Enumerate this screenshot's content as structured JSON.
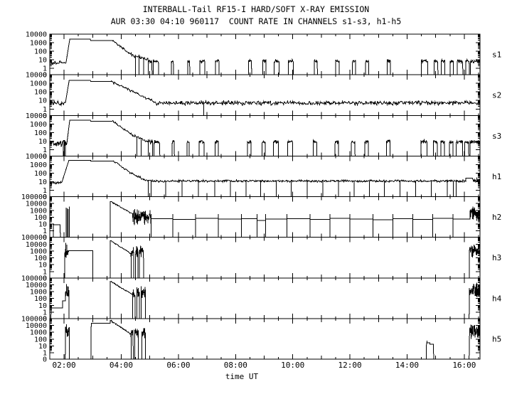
{
  "title": "INTERBALL-Tail RF15-I HARD/SOFT X-RAY EMISSION",
  "subtitle": "AUR 03:30 04:10 960117  COUNT RATE IN CHANNELS s1-s3, h1-h5",
  "chart_data": {
    "type": "line",
    "title": "INTERBALL-Tail RF15-I HARD/SOFT X-RAY EMISSION",
    "subtitle": "AUR 03:30 04:10 960117  COUNT RATE IN CHANNELS s1-s3, h1-h5",
    "xlabel": "time UT",
    "y_scale": "log",
    "grid": false,
    "x_range_hours": [
      1.5,
      16.55
    ],
    "x_minor_tick_hours": 0.5,
    "x_ticks": [
      {
        "t": 2,
        "label": "02:00"
      },
      {
        "t": 4,
        "label": "04:00"
      },
      {
        "t": 6,
        "label": "06:00"
      },
      {
        "t": 8,
        "label": "08:00"
      },
      {
        "t": 10,
        "label": "10:00"
      },
      {
        "t": 12,
        "label": "12:00"
      },
      {
        "t": 14,
        "label": "14:00"
      },
      {
        "t": 16,
        "label": "16:00"
      }
    ],
    "zero_label": "0",
    "panels": [
      {
        "label": "s1",
        "ymax": 10000,
        "ytick_labels": [
          "10000",
          "1000",
          "100",
          "10",
          "1",
          "0"
        ],
        "segments": [
          {
            "type": "noisy",
            "t0": 1.5,
            "t1": 2.07,
            "level": 4.5,
            "jitter": 0.32
          },
          {
            "type": "rise",
            "t0": 2.07,
            "t1": 2.2,
            "from": 5,
            "to": 2500
          },
          {
            "type": "flat",
            "t0": 2.2,
            "t1": 2.93,
            "level": 2500
          },
          {
            "type": "flat",
            "t0": 2.93,
            "t1": 3.7,
            "level": 1800
          },
          {
            "type": "decay",
            "t0": 3.7,
            "t1": 4.35,
            "from": 1800,
            "to": 40,
            "jitter": 0.15
          },
          {
            "type": "decay",
            "t0": 4.35,
            "t1": 4.95,
            "from": 40,
            "to": 9,
            "jitter": 0.25,
            "gaps": [
              4.5,
              4.62,
              4.78
            ]
          },
          {
            "type": "bursts",
            "t0": 4.95,
            "t1": 16.55,
            "level": 7,
            "jitter": 0.22,
            "dt": 0.012,
            "intervals": [
              [
                4.95,
                5.08
              ],
              [
                5.12,
                5.3
              ],
              [
                5.75,
                5.83
              ],
              [
                6.33,
                6.4
              ],
              [
                6.75,
                6.92
              ],
              [
                7.3,
                7.42
              ],
              [
                8.45,
                8.56
              ],
              [
                8.95,
                9.06
              ],
              [
                9.35,
                9.52
              ],
              [
                9.85,
                10.02
              ],
              [
                10.75,
                10.86
              ],
              [
                11.5,
                11.62
              ],
              [
                12.08,
                12.2
              ],
              [
                12.55,
                12.66
              ],
              [
                13.3,
                13.42
              ],
              [
                14.5,
                14.72
              ],
              [
                14.95,
                15.08
              ],
              [
                15.2,
                15.32
              ],
              [
                15.5,
                15.62
              ],
              [
                15.75,
                15.95
              ],
              [
                16.05,
                16.18
              ],
              [
                16.22,
                16.55
              ]
            ]
          }
        ]
      },
      {
        "label": "s2",
        "ymax": 10000,
        "ytick_labels": [
          "10000",
          "1000",
          "100",
          "10",
          "1",
          "0"
        ],
        "segments": [
          {
            "type": "noisy",
            "t0": 1.5,
            "t1": 2.05,
            "level": 5,
            "jitter": 0.3
          },
          {
            "type": "rise",
            "t0": 2.05,
            "t1": 2.18,
            "from": 6,
            "to": 2200
          },
          {
            "type": "flat",
            "t0": 2.18,
            "t1": 2.93,
            "level": 2200
          },
          {
            "type": "flat",
            "t0": 2.93,
            "t1": 3.66,
            "level": 1600
          },
          {
            "type": "decay",
            "t0": 3.66,
            "t1": 5.2,
            "from": 1600,
            "to": 6,
            "jitter": 0.2
          },
          {
            "type": "noisy",
            "t0": 5.2,
            "t1": 16.55,
            "level": 5,
            "jitter": 0.3,
            "gaps": [
              6.88
            ]
          }
        ]
      },
      {
        "label": "s3",
        "ymax": 10000,
        "ytick_labels": [
          "10000",
          "1000",
          "100",
          "10",
          "1",
          "0"
        ],
        "segments": [
          {
            "type": "noisy",
            "t0": 1.5,
            "t1": 2.1,
            "level": 5.5,
            "jitter": 0.45,
            "gaps": [
              1.97,
              2.01,
              2.05
            ]
          },
          {
            "type": "rise",
            "t0": 2.1,
            "t1": 2.2,
            "from": 6,
            "to": 2800
          },
          {
            "type": "flat",
            "t0": 2.2,
            "t1": 2.93,
            "level": 2800
          },
          {
            "type": "flat",
            "t0": 2.93,
            "t1": 3.7,
            "level": 2100
          },
          {
            "type": "decay",
            "t0": 3.7,
            "t1": 4.4,
            "from": 2100,
            "to": 50,
            "jitter": 0.15
          },
          {
            "type": "decay",
            "t0": 4.4,
            "t1": 4.95,
            "from": 50,
            "to": 9,
            "jitter": 0.25,
            "gaps": [
              4.55,
              4.7
            ]
          },
          {
            "type": "bursts",
            "t0": 4.95,
            "t1": 16.55,
            "level": 8,
            "jitter": 0.25,
            "dt": 0.012,
            "intervals": [
              [
                4.95,
                5.1
              ],
              [
                5.15,
                5.35
              ],
              [
                5.78,
                5.86
              ],
              [
                6.3,
                6.38
              ],
              [
                6.72,
                6.9
              ],
              [
                7.28,
                7.4
              ],
              [
                8.42,
                8.54
              ],
              [
                8.92,
                9.04
              ],
              [
                9.32,
                9.5
              ],
              [
                9.82,
                10.0
              ],
              [
                10.72,
                10.84
              ],
              [
                11.48,
                11.6
              ],
              [
                12.05,
                12.18
              ],
              [
                12.52,
                12.64
              ],
              [
                13.28,
                13.4
              ],
              [
                14.48,
                14.7
              ],
              [
                14.92,
                15.06
              ],
              [
                15.18,
                15.3
              ],
              [
                15.48,
                15.6
              ],
              [
                15.72,
                15.94
              ],
              [
                16.02,
                16.16
              ],
              [
                16.2,
                16.55
              ]
            ]
          }
        ]
      },
      {
        "label": "h1",
        "ymax": 10000,
        "ytick_labels": [
          "10000",
          "1000",
          "100",
          "10",
          "1",
          "0"
        ],
        "segments": [
          {
            "type": "noisy",
            "t0": 1.5,
            "t1": 1.92,
            "level": 7,
            "jitter": 0.25
          },
          {
            "type": "rise",
            "t0": 1.92,
            "t1": 2.17,
            "from": 8,
            "to": 3200
          },
          {
            "type": "flat",
            "t0": 2.17,
            "t1": 2.93,
            "level": 3200
          },
          {
            "type": "flat",
            "t0": 2.93,
            "t1": 3.73,
            "level": 2600
          },
          {
            "type": "decay",
            "t0": 3.73,
            "t1": 4.3,
            "from": 2600,
            "to": 120,
            "jitter": 0.12
          },
          {
            "type": "decay",
            "t0": 4.3,
            "t1": 4.85,
            "from": 120,
            "to": 14,
            "jitter": 0.2
          },
          {
            "type": "noisy",
            "t0": 4.85,
            "t1": 16.05,
            "level": 12,
            "jitter": 0.16,
            "gaps": [
              4.95,
              5.05,
              5.55,
              6.13,
              6.7,
              7.27,
              7.82,
              8.36,
              8.88,
              9.42,
              9.95,
              10.5,
              11.05,
              11.6,
              12.15,
              12.68,
              13.2,
              13.75,
              14.3,
              14.85,
              15.4,
              15.62,
              15.72
            ]
          },
          {
            "type": "flat",
            "t0": 16.05,
            "t1": 16.3,
            "level": 25
          },
          {
            "type": "noisy",
            "t0": 16.3,
            "t1": 16.55,
            "level": 14,
            "jitter": 0.35,
            "dt": 0.01
          }
        ]
      },
      {
        "label": "h2",
        "ymax": 100000,
        "ytick_labels": [
          "100000",
          "10000",
          "1000",
          "100",
          "10",
          "1",
          "0"
        ],
        "segments": [
          {
            "type": "zero",
            "t0": 1.5,
            "t1": 1.62
          },
          {
            "type": "flat",
            "t0": 1.62,
            "t1": 1.87,
            "level": 8
          },
          {
            "type": "zero",
            "t0": 1.87,
            "t1": 2.05
          },
          {
            "type": "spikes",
            "t0": 2.05,
            "t1": 2.2,
            "n": 4,
            "peak": 3500
          },
          {
            "type": "zero",
            "t0": 2.2,
            "t1": 3.62
          },
          {
            "type": "decay",
            "t0": 3.62,
            "t1": 4.4,
            "from": 20000,
            "to": 250,
            "jitter": 0.1,
            "steppy": true
          },
          {
            "type": "noisy",
            "t0": 4.4,
            "t1": 5.05,
            "level": 120,
            "jitter": 1.3,
            "dt": 0.008
          },
          {
            "type": "steps",
            "t1": 16.2,
            "spikes_to": 300,
            "points": [
              [
                5.05,
                60
              ],
              [
                5.8,
                48
              ],
              [
                6.6,
                65
              ],
              [
                7.4,
                52
              ],
              [
                8.2,
                62
              ],
              [
                8.75,
                32
              ],
              [
                9.05,
                55
              ],
              [
                9.8,
                62
              ],
              [
                10.6,
                48
              ],
              [
                11.3,
                65
              ],
              [
                12.0,
                55
              ],
              [
                12.8,
                44
              ],
              [
                13.5,
                60
              ],
              [
                14.2,
                50
              ],
              [
                14.9,
                66
              ],
              [
                15.6,
                52
              ]
            ]
          },
          {
            "type": "noisy",
            "t0": 16.2,
            "t1": 16.55,
            "level": 250,
            "jitter": 1.3,
            "dt": 0.008
          }
        ]
      },
      {
        "label": "h3",
        "ymax": 100000,
        "ytick_labels": [
          "100000",
          "10000",
          "1000",
          "100",
          "10",
          "1",
          "0"
        ],
        "segments": [
          {
            "type": "zero",
            "t0": 1.5,
            "t1": 2.02
          },
          {
            "type": "noisy",
            "t0": 2.02,
            "t1": 2.16,
            "level": 400,
            "jitter": 1.0,
            "dt": 0.008,
            "spikes": [
              [
                2.06,
                15000
              ],
              [
                2.1,
                8000
              ]
            ]
          },
          {
            "type": "flat",
            "t0": 2.16,
            "t1": 3.0,
            "level": 1100
          },
          {
            "type": "zero",
            "t0": 3.0,
            "t1": 3.62
          },
          {
            "type": "decay",
            "t0": 3.62,
            "t1": 4.35,
            "from": 30000,
            "to": 350,
            "jitter": 0.1,
            "steppy": true
          },
          {
            "type": "bursts",
            "t0": 4.35,
            "t1": 4.78,
            "level": 900,
            "jitter": 1.0,
            "dt": 0.008,
            "intervals": [
              [
                4.35,
                4.43
              ],
              [
                4.5,
                4.59
              ],
              [
                4.64,
                4.78
              ]
            ]
          },
          {
            "type": "zero",
            "t0": 4.78,
            "t1": 16.18
          },
          {
            "type": "noisy",
            "t0": 16.18,
            "t1": 16.55,
            "level": 1500,
            "jitter": 1.2,
            "dt": 0.008
          }
        ]
      },
      {
        "label": "h4",
        "ymax": 100000,
        "ytick_labels": [
          "100000",
          "10000",
          "1000",
          "100",
          "10",
          "1",
          "0"
        ],
        "segments": [
          {
            "type": "zero",
            "t0": 1.5,
            "t1": 1.55
          },
          {
            "type": "flat",
            "t0": 1.55,
            "t1": 1.95,
            "level": 4
          },
          {
            "type": "flat",
            "t0": 1.95,
            "t1": 2.05,
            "level": 45
          },
          {
            "type": "noisy",
            "t0": 2.05,
            "t1": 2.17,
            "level": 800,
            "jitter": 1.0,
            "dt": 0.008,
            "spikes": [
              [
                2.08,
                12000
              ],
              [
                2.12,
                6000
              ]
            ]
          },
          {
            "type": "zero",
            "t0": 2.17,
            "t1": 3.62
          },
          {
            "type": "decay",
            "t0": 3.62,
            "t1": 4.4,
            "from": 30000,
            "to": 300,
            "jitter": 0.1,
            "steppy": true
          },
          {
            "type": "bursts",
            "t0": 4.4,
            "t1": 4.85,
            "level": 700,
            "jitter": 1.1,
            "dt": 0.008,
            "intervals": [
              [
                4.4,
                4.48
              ],
              [
                4.55,
                4.63
              ],
              [
                4.7,
                4.85
              ]
            ]
          },
          {
            "type": "zero",
            "t0": 4.85,
            "t1": 16.18
          },
          {
            "type": "noisy",
            "t0": 16.18,
            "t1": 16.55,
            "level": 1500,
            "jitter": 1.2,
            "dt": 0.008
          }
        ]
      },
      {
        "label": "h5",
        "ymax": 100000,
        "ytick_labels": [
          "100000",
          "10000",
          "1000",
          "100",
          "10",
          "1",
          "0"
        ],
        "segments": [
          {
            "type": "zero",
            "t0": 1.5,
            "t1": 2.05
          },
          {
            "type": "noisy",
            "t0": 2.05,
            "t1": 2.18,
            "level": 1500,
            "jitter": 1.1,
            "dt": 0.008,
            "spikes": [
              [
                2.09,
                15000
              ]
            ]
          },
          {
            "type": "zero",
            "t0": 2.18,
            "t1": 2.95
          },
          {
            "type": "flat",
            "t0": 2.95,
            "t1": 3.62,
            "level": 20000
          },
          {
            "type": "decay",
            "t0": 3.62,
            "t1": 4.35,
            "from": 50000,
            "to": 400,
            "jitter": 0.1,
            "steppy": true
          },
          {
            "type": "bursts",
            "t0": 4.35,
            "t1": 4.6,
            "level": 800,
            "jitter": 1.0,
            "dt": 0.008,
            "intervals": [
              [
                4.35,
                4.42
              ],
              [
                4.47,
                4.6
              ]
            ]
          },
          {
            "type": "zero",
            "t0": 4.6,
            "t1": 4.72
          },
          {
            "type": "bursts",
            "t0": 4.72,
            "t1": 4.85,
            "level": 900,
            "jitter": 0.9,
            "dt": 0.008,
            "intervals": [
              [
                4.72,
                4.85
              ]
            ]
          },
          {
            "type": "zero",
            "t0": 4.85,
            "t1": 14.68
          },
          {
            "type": "flat",
            "t0": 14.68,
            "t1": 14.8,
            "level": 30,
            "spikes": [
              [
                14.7,
                55
              ]
            ]
          },
          {
            "type": "flat",
            "t0": 14.8,
            "t1": 14.93,
            "level": 18
          },
          {
            "type": "zero",
            "t0": 14.93,
            "t1": 16.18
          },
          {
            "type": "noisy",
            "t0": 16.18,
            "t1": 16.55,
            "level": 1200,
            "jitter": 1.2,
            "dt": 0.008
          }
        ]
      }
    ]
  },
  "colors": {
    "foreground": "#000000",
    "background": "#ffffff"
  }
}
